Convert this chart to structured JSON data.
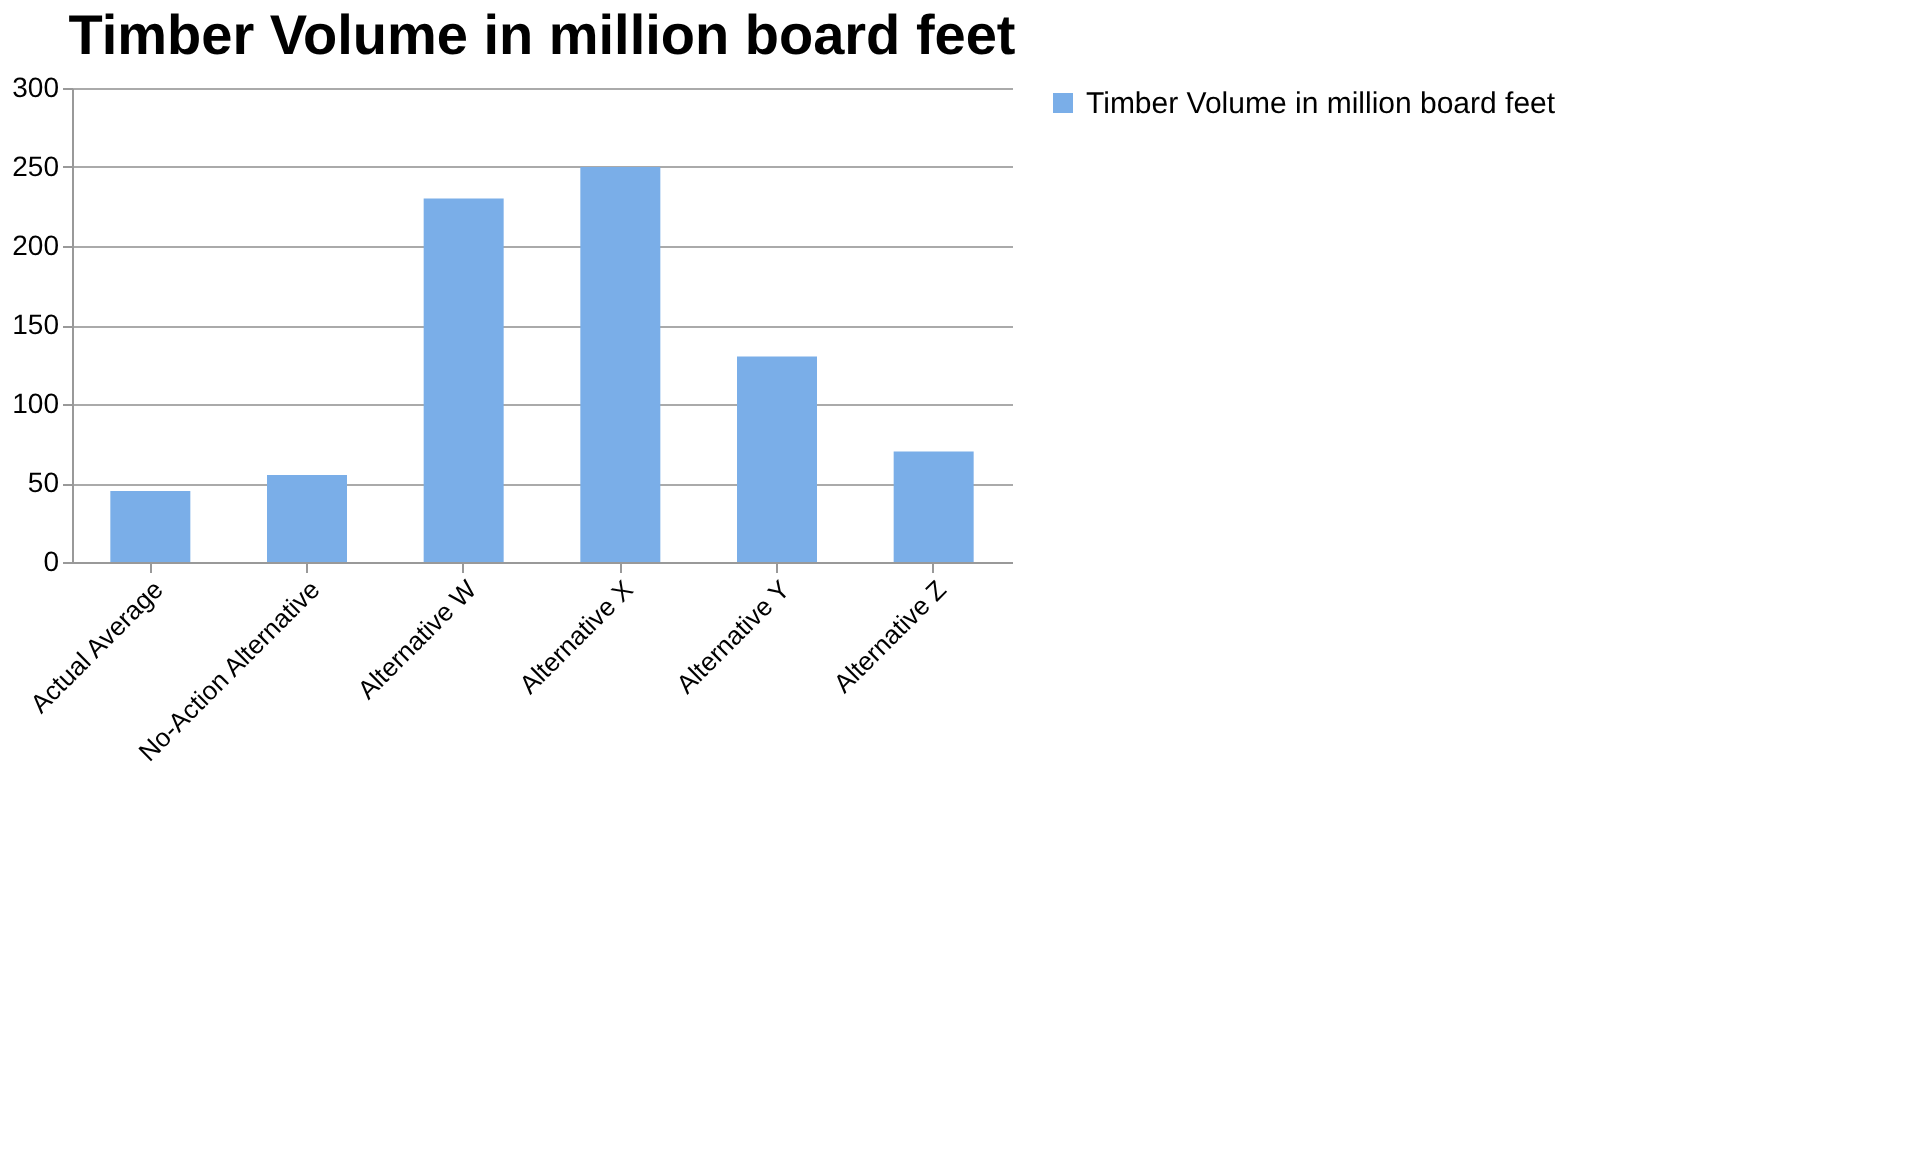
{
  "chart_data": {
    "type": "bar",
    "title": "Timber Volume in million board feet",
    "categories": [
      "Actual Average",
      "No-Action Alternative",
      "Alternative W",
      "Alternative X",
      "Alternative Y",
      "Alternative Z"
    ],
    "series": [
      {
        "name": "Timber Volume in million board feet",
        "color": "#7aaee8",
        "values": [
          45,
          55,
          230,
          250,
          130,
          70
        ]
      }
    ],
    "ylim": [
      0,
      300
    ],
    "yticks": [
      0,
      50,
      100,
      150,
      200,
      250,
      300
    ],
    "grid": "y",
    "legend": "right"
  }
}
